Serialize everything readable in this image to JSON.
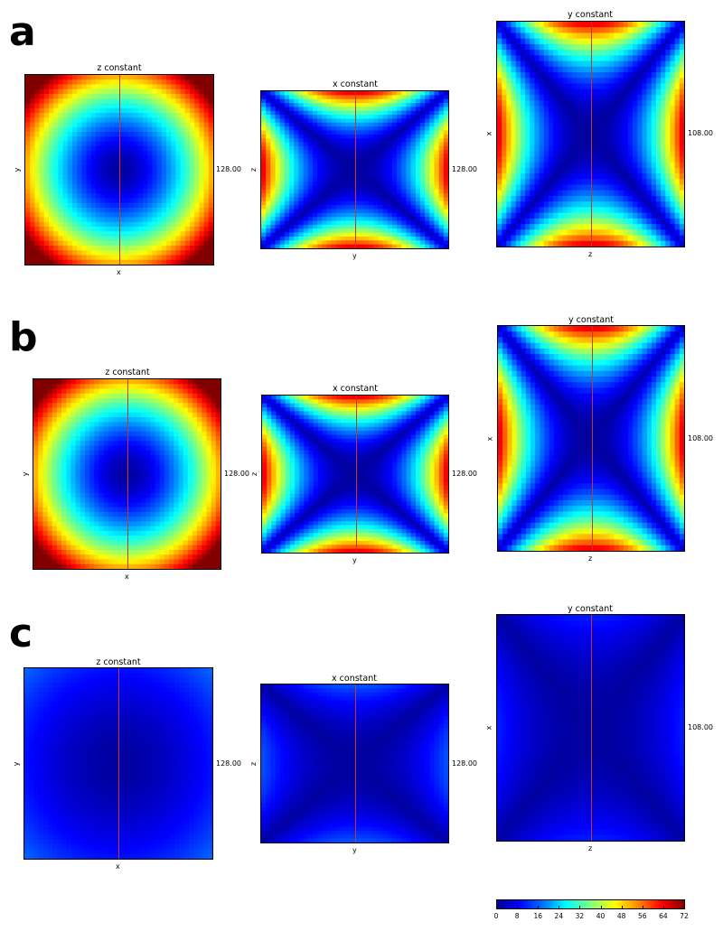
{
  "figure": {
    "rows": [
      {
        "label": "a",
        "panels": [
          {
            "title": "z constant",
            "xlabel": "x",
            "ylabel": "y",
            "value": "128.00",
            "kind": "circle",
            "intensity": 1.0
          },
          {
            "title": "x constant",
            "xlabel": "y",
            "ylabel": "z",
            "value": "128.00",
            "kind": "saddle",
            "intensity": 1.0
          },
          {
            "title": "y constant",
            "xlabel": "z",
            "ylabel": "x",
            "value": "108.00",
            "kind": "saddle-tall",
            "intensity": 1.0
          }
        ]
      },
      {
        "label": "b",
        "panels": [
          {
            "title": "z constant",
            "xlabel": "x",
            "ylabel": "y",
            "value": "128.00",
            "kind": "circle",
            "intensity": 1.0
          },
          {
            "title": "x constant",
            "xlabel": "y",
            "ylabel": "z",
            "value": "128.00",
            "kind": "saddle",
            "intensity": 1.0
          },
          {
            "title": "y constant",
            "xlabel": "z",
            "ylabel": "x",
            "value": "108.00",
            "kind": "saddle-tall",
            "intensity": 1.0
          }
        ]
      },
      {
        "label": "c",
        "panels": [
          {
            "title": "z constant",
            "xlabel": "x",
            "ylabel": "y",
            "value": "128.00",
            "kind": "circle",
            "intensity": 0.16
          },
          {
            "title": "x constant",
            "xlabel": "y",
            "ylabel": "z",
            "value": "128.00",
            "kind": "saddle",
            "intensity": 0.2
          },
          {
            "title": "y constant",
            "xlabel": "z",
            "ylabel": "x",
            "value": "108.00",
            "kind": "saddle-tall",
            "intensity": 0.14
          }
        ]
      }
    ],
    "colorbar": {
      "ticks": [
        "0",
        "8",
        "16",
        "24",
        "32",
        "40",
        "48",
        "56",
        "64",
        "72"
      ],
      "min": 0,
      "max": 72
    }
  }
}
